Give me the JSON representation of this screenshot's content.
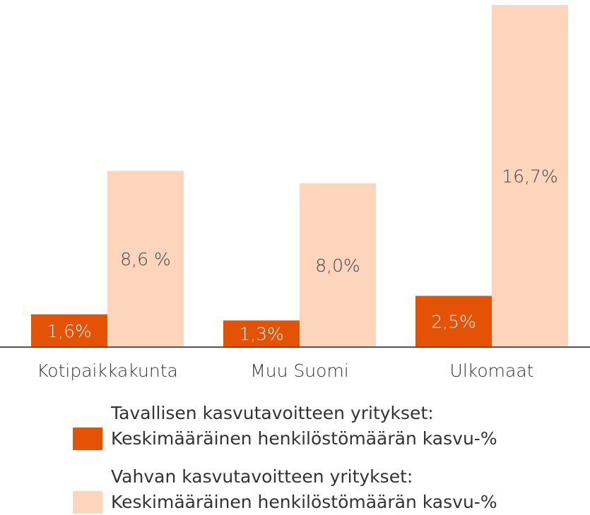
{
  "chart_data": {
    "type": "bar",
    "categories": [
      "Kotipaikkakunta",
      "Muu Suomi",
      "Ulkomaat"
    ],
    "series": [
      {
        "name": "Tavallisen kasvutavoitteen yritykset:\nKeskimääräinen henkilöstömäärän kasvu-%",
        "color": "#e35205",
        "values": [
          1.6,
          1.3,
          2.5
        ],
        "value_labels": [
          "1,6%",
          "1,3%",
          "2,5%"
        ]
      },
      {
        "name": "Vahvan kasvutavoitteen yritykset:\nKeskimääräinen henkilöstömäärän kasvu-%",
        "color": "#fdd5bd",
        "values": [
          8.6,
          8.0,
          16.7
        ],
        "value_labels": [
          "8,6 %",
          "8,0%",
          "16,7%"
        ]
      }
    ]
  }
}
